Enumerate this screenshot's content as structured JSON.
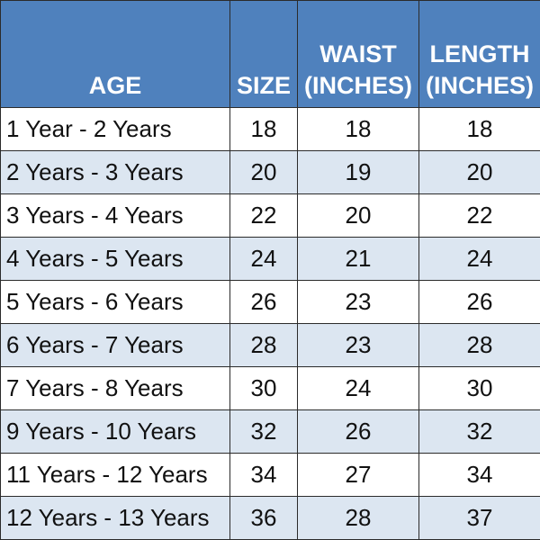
{
  "table": {
    "header": [
      "AGE",
      "SIZE",
      "WAIST (INCHES)",
      "LENGTH (INCHES)"
    ],
    "rows": [
      [
        "1 Year - 2 Years",
        18,
        18,
        18
      ],
      [
        "2 Years - 3 Years",
        20,
        19,
        20
      ],
      [
        "3 Years - 4 Years",
        22,
        20,
        22
      ],
      [
        "4 Years - 5 Years",
        24,
        21,
        24
      ],
      [
        "5 Years - 6 Years",
        26,
        23,
        26
      ],
      [
        "6 Years - 7 Years",
        28,
        23,
        28
      ],
      [
        "7 Years - 8 Years",
        30,
        24,
        30
      ],
      [
        "9 Years - 10 Years",
        32,
        26,
        32
      ],
      [
        "11 Years - 12 Years",
        34,
        27,
        34
      ],
      [
        "12 Years - 13 Years",
        36,
        28,
        37
      ]
    ]
  }
}
